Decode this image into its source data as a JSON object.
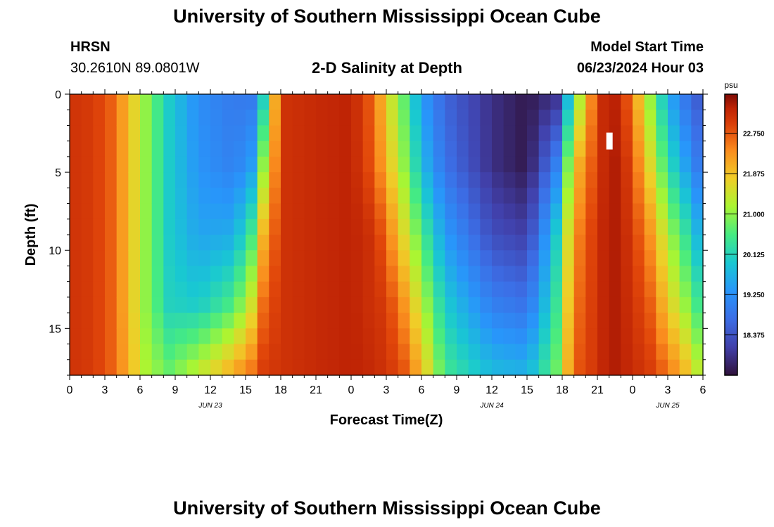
{
  "header": {
    "title": "University of Southern Mississippi Ocean Cube",
    "station": "HRSN",
    "coords": "30.2610N  89.0801W",
    "subtitle": "2-D Salinity at Depth",
    "model_start_label": "Model Start Time",
    "model_start_value": "06/23/2024 Hour 03"
  },
  "footer": {
    "title": "University of Southern Mississippi Ocean Cube"
  },
  "colors": {
    "background": "#ffffff",
    "axis": "#000000"
  },
  "chart_data": {
    "type": "heatmap",
    "title": "2-D Salinity at Depth",
    "xlabel": "Forecast Time(Z)",
    "ylabel": "Depth (ft)",
    "x_range_hours": [
      0,
      54
    ],
    "x_tick_labels": [
      "0",
      "3",
      "6",
      "9",
      "12",
      "15",
      "18",
      "21",
      "0",
      "3",
      "6",
      "9",
      "12",
      "15",
      "18",
      "21",
      "0",
      "3",
      "6"
    ],
    "date_labels": [
      {
        "label": "JUN 23",
        "hour": 12
      },
      {
        "label": "JUN 24",
        "hour": 36
      },
      {
        "label": "JUN 25",
        "hour": 51
      }
    ],
    "y_range_ft": [
      0,
      18
    ],
    "y_tick_labels": [
      "0",
      "5",
      "10",
      "15"
    ],
    "y_tick_values": [
      0,
      5,
      10,
      15
    ],
    "colorbar": {
      "units": "psu",
      "range": [
        17.5,
        23.6
      ],
      "tick_labels": [
        "22.750",
        "21.875",
        "21.000",
        "20.125",
        "19.250",
        "18.375"
      ],
      "tick_values": [
        22.75,
        21.875,
        21.0,
        20.125,
        19.25,
        18.375
      ]
    },
    "missing_cell": {
      "hour": 46,
      "depth_ft": 3
    },
    "salinity_keyframes": {
      "depth_levels_ft": [
        0,
        4.5,
        9,
        13.5,
        18
      ],
      "hours": [
        0,
        2,
        3.5,
        5,
        6.5,
        8.5,
        11,
        14,
        15.5,
        16.5,
        18,
        24,
        26,
        27,
        28.5,
        30,
        32,
        36,
        39,
        41.5,
        43,
        45,
        46,
        47,
        48,
        49.5,
        51,
        53,
        54
      ],
      "surface": [
        23.1,
        23.0,
        22.7,
        22.0,
        21.0,
        20.0,
        19.2,
        18.9,
        18.9,
        20.0,
        23.1,
        23.3,
        22.6,
        21.7,
        20.7,
        19.4,
        18.6,
        17.9,
        17.6,
        17.9,
        20.6,
        23.0,
        23.4,
        23.2,
        22.4,
        21.0,
        19.6,
        18.6,
        18.4
      ],
      "depth_4_5": [
        23.1,
        23.0,
        22.7,
        22.0,
        21.0,
        20.0,
        19.3,
        19.0,
        19.4,
        21.0,
        23.1,
        23.3,
        22.7,
        22.0,
        21.0,
        19.8,
        18.8,
        17.9,
        17.6,
        19.0,
        21.8,
        23.0,
        23.4,
        23.3,
        22.8,
        21.6,
        20.3,
        19.2,
        18.7
      ],
      "depth_9": [
        23.1,
        23.0,
        22.7,
        22.0,
        21.0,
        20.0,
        19.5,
        19.6,
        20.5,
        22.0,
        23.1,
        23.3,
        23.1,
        22.6,
        21.6,
        20.6,
        19.4,
        18.3,
        18.1,
        20.0,
        22.3,
        23.1,
        23.4,
        23.3,
        23.0,
        22.3,
        21.2,
        20.1,
        19.4
      ],
      "depth_13_5": [
        23.1,
        23.0,
        22.7,
        22.0,
        21.0,
        20.1,
        20.0,
        20.6,
        21.5,
        22.6,
        23.1,
        23.3,
        23.1,
        23.0,
        22.3,
        21.3,
        20.0,
        19.0,
        18.8,
        20.4,
        22.5,
        23.1,
        23.4,
        23.3,
        23.1,
        22.7,
        21.8,
        20.8,
        20.2
      ],
      "bottom": [
        23.1,
        23.0,
        22.7,
        22.1,
        21.2,
        20.8,
        21.4,
        22.2,
        22.6,
        23.0,
        23.1,
        23.3,
        23.2,
        23.1,
        22.8,
        22.0,
        20.5,
        19.8,
        19.7,
        20.8,
        22.7,
        23.1,
        23.4,
        23.3,
        23.2,
        23.0,
        22.6,
        21.8,
        21.0
      ]
    }
  }
}
